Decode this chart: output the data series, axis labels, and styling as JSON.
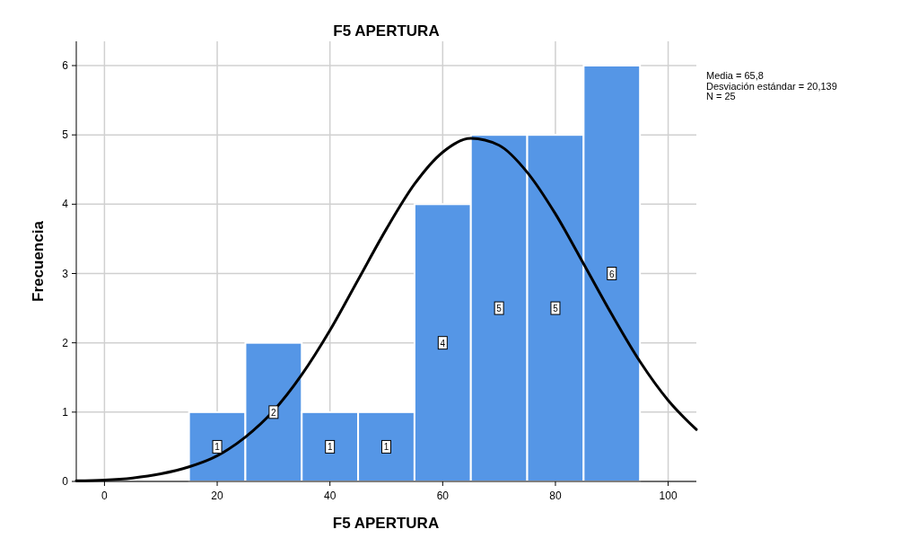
{
  "chart_data": {
    "type": "histogram",
    "title": "F5 APERTURA",
    "xlabel": "F5 APERTURA",
    "ylabel": "Frecuencia",
    "bins": [
      15,
      25,
      35,
      45,
      55,
      65,
      75,
      85,
      95
    ],
    "values": [
      1,
      2,
      1,
      1,
      4,
      5,
      5,
      6
    ],
    "color": "#5596e6",
    "value_labels": [
      "1",
      "2",
      "1",
      "1",
      "4",
      "5",
      "5",
      "6"
    ],
    "series": [
      {
        "type": "line",
        "color": "#000000",
        "x": [
          -5,
          0,
          5,
          10,
          15,
          20,
          25,
          30,
          35,
          40,
          45,
          50,
          55,
          60,
          65,
          70,
          75,
          80,
          85,
          90,
          95,
          100,
          105
        ],
        "values": [
          0.01,
          0.02,
          0.05,
          0.11,
          0.21,
          0.37,
          0.64,
          1.02,
          1.54,
          2.18,
          2.91,
          3.64,
          4.29,
          4.75,
          4.95,
          4.85,
          4.46,
          3.86,
          3.14,
          2.41,
          1.73,
          1.17,
          0.75
        ]
      }
    ],
    "xlim": [
      -5,
      105
    ],
    "xticks": [
      0,
      20,
      40,
      60,
      80,
      100
    ],
    "ylim": [
      0,
      6.35
    ],
    "yticks": [
      0,
      1,
      2,
      3,
      4,
      5,
      6
    ],
    "grid": true,
    "annotations": [
      "Media = 65,8",
      "Desviación estándar = 20,139",
      "N = 25"
    ]
  }
}
